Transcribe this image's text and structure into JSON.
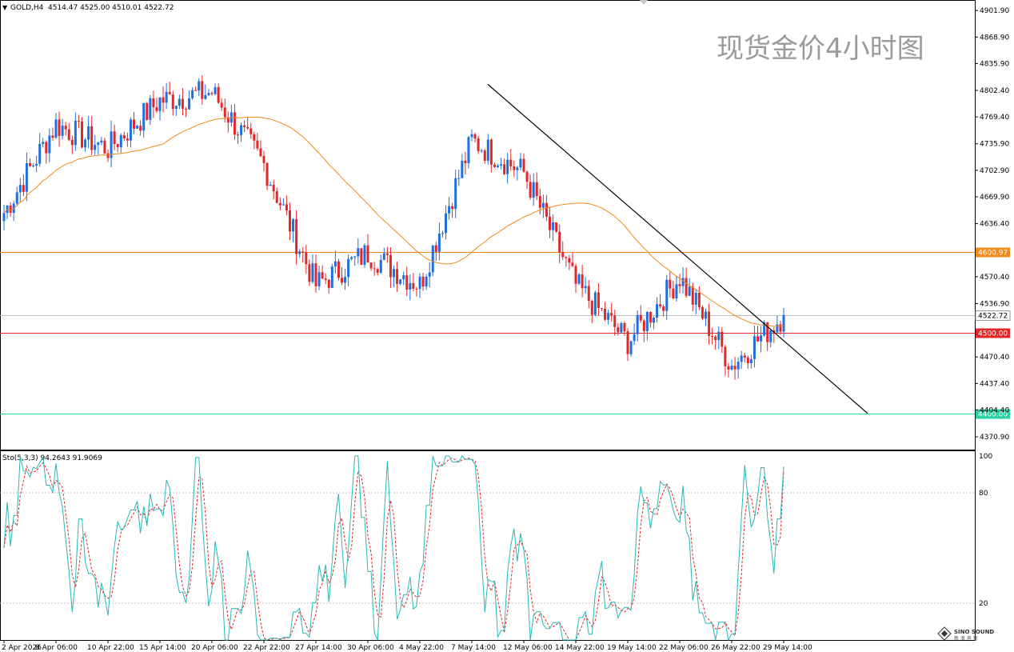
{
  "header": {
    "symbol": "GOLD,H4",
    "ohlc": "4514.47 4525.00 4510.01 4522.72",
    "watermark": "现货金价4小时图"
  },
  "indicator": {
    "label": "Sto(5,3,3) 94.2643 91.9069",
    "levels": [
      100,
      80,
      20
    ],
    "level_labels": [
      "100",
      "80",
      "20"
    ]
  },
  "price_axis": {
    "ticks": [
      "4901.90",
      "4868.90",
      "4835.90",
      "4802.40",
      "4769.40",
      "4735.90",
      "4702.90",
      "4669.90",
      "4636.40",
      "4570.40",
      "4536.90",
      "4470.40",
      "4437.40",
      "4404.40",
      "4370.90"
    ],
    "current_price": "4522.72"
  },
  "time_axis": {
    "labels": [
      "2 Apr 2026",
      "8 Apr 06:00",
      "10 Apr 22:00",
      "15 Apr 14:00",
      "20 Apr 06:00",
      "22 Apr 22:00",
      "27 Apr 14:00",
      "30 Apr 06:00",
      "4 May 22:00",
      "7 May 14:00",
      "12 May 06:00",
      "14 May 22:00",
      "19 May 14:00",
      "22 May 06:00",
      "26 May 22:00",
      "29 May 14:00"
    ]
  },
  "horizontal_levels": [
    {
      "value": 4600.97,
      "label": "4600.97",
      "color": "#f08a1c"
    },
    {
      "value": 4500.0,
      "label": "4500.00",
      "color": "#e0282c"
    },
    {
      "value": 4400.0,
      "label": "4400.00",
      "color": "#27d3a0"
    }
  ],
  "colors": {
    "bull": "#1f6fe0",
    "bear": "#e0282c",
    "ma": "#f08a1c",
    "trendline": "#000000",
    "stoch_main": "#2ab7b7",
    "stoch_signal": "#e0282c"
  },
  "brand": {
    "logo_text": "SINO SOUND",
    "logo_sub": "新 浪 声 音"
  },
  "chart_data": {
    "type": "candlestick",
    "symbol": "GOLD",
    "timeframe": "H4",
    "ylim": [
      4355,
      4915
    ],
    "last": {
      "open": 4514.47,
      "high": 4525.0,
      "low": 4510.01,
      "close": 4522.72
    },
    "moving_average": {
      "period_approx": 50,
      "color": "#f08a1c"
    },
    "trendline": {
      "from": {
        "time": "7 May 14:00",
        "price": 4810
      },
      "to": {
        "time": "29 May 14:00",
        "price": 4420
      }
    },
    "key_closes": [
      {
        "time": "2 Apr 2026",
        "close": 4650
      },
      {
        "time": "8 Apr 06:00",
        "close": 4760
      },
      {
        "time": "10 Apr 22:00",
        "close": 4730
      },
      {
        "time": "15 Apr 14:00",
        "close": 4790
      },
      {
        "time": "20 Apr 06:00",
        "close": 4800
      },
      {
        "time": "22 Apr 22:00",
        "close": 4710
      },
      {
        "time": "27 Apr 14:00",
        "close": 4560
      },
      {
        "time": "30 Apr 06:00",
        "close": 4600
      },
      {
        "time": "4 May 22:00",
        "close": 4560
      },
      {
        "time": "7 May 14:00",
        "close": 4740
      },
      {
        "time": "12 May 06:00",
        "close": 4700
      },
      {
        "time": "14 May 22:00",
        "close": 4560
      },
      {
        "time": "19 May 14:00",
        "close": 4490
      },
      {
        "time": "22 May 06:00",
        "close": 4570
      },
      {
        "time": "26 May 22:00",
        "close": 4460
      },
      {
        "time": "29 May 14:00",
        "close": 4522.72
      }
    ],
    "stochastic": {
      "params": "5,3,3",
      "main": 94.2643,
      "signal": 91.9069,
      "levels": [
        20,
        80,
        100
      ]
    }
  }
}
